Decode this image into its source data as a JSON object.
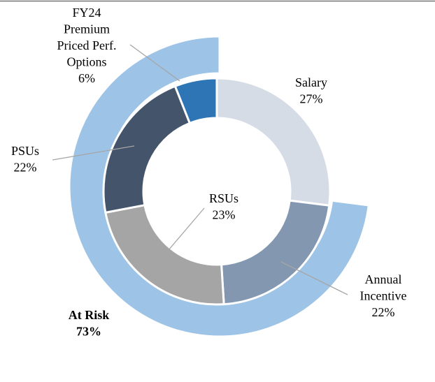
{
  "chart_data": {
    "type": "pie",
    "subtype": "nested-donut",
    "title": "",
    "inner_ring": {
      "slices": [
        {
          "key": "salary",
          "label": "Salary",
          "value": 27,
          "value_label": "27%",
          "color": "#d6dce5"
        },
        {
          "key": "annual-incentive",
          "label": "Annual Incentive",
          "label_lines": [
            "Annual",
            "Incentive"
          ],
          "value": 22,
          "value_label": "22%",
          "color": "#8497b0"
        },
        {
          "key": "rsus",
          "label": "RSUs",
          "value": 23,
          "value_label": "23%",
          "color": "#a5a5a5"
        },
        {
          "key": "psus",
          "label": "PSUs",
          "value": 22,
          "value_label": "22%",
          "color": "#44546a"
        },
        {
          "key": "fy24-options",
          "label": "FY24 Premium Priced Perf. Options",
          "label_lines": [
            "FY24",
            "Premium",
            "Priced Perf.",
            "Options"
          ],
          "value": 6,
          "value_label": "6%",
          "color": "#2e75b6"
        }
      ]
    },
    "outer_ring": {
      "slices": [
        {
          "key": "at-risk",
          "label": "At Risk",
          "value": 73,
          "value_label": "73%",
          "color": "#9dc3e6"
        }
      ]
    },
    "start_angle_deg": 0,
    "direction": "clockwise",
    "legend": "none",
    "edge_color": "#ffffff",
    "leader_color": "#a6a6a6"
  }
}
